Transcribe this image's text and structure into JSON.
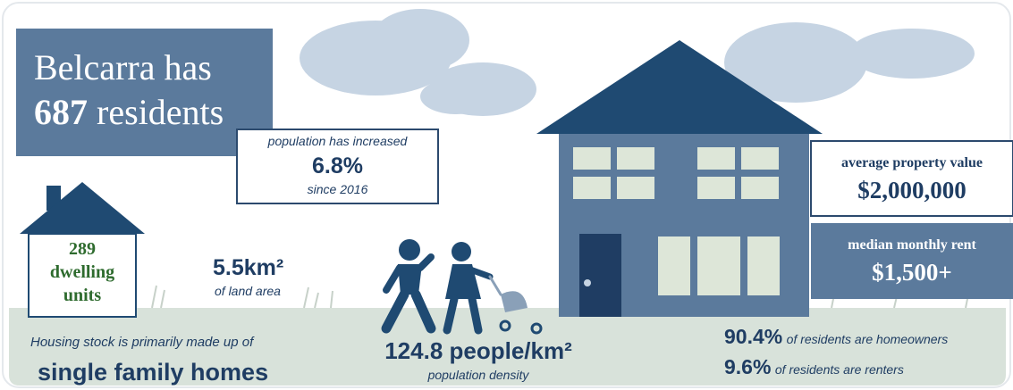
{
  "title": {
    "line1": "Belcarra has",
    "number": "687",
    "word": "residents"
  },
  "population_change": {
    "label": "population has increased",
    "value": "6.8%",
    "since": "since 2016"
  },
  "dwellings": {
    "number": "289",
    "line2": "dwelling",
    "line3": "units"
  },
  "land": {
    "value": "5.5km²",
    "label": "of land area"
  },
  "housing_stock": {
    "intro": "Housing stock is primarily made up of",
    "type": "single family homes"
  },
  "density": {
    "value": "124.8 people/km²",
    "label": "population density"
  },
  "property": {
    "label": "average property value",
    "value": "$2,000,000"
  },
  "rent": {
    "label": "median monthly rent",
    "value": "$1,500+"
  },
  "tenure": [
    {
      "value": "90.4%",
      "label": "of residents are homeowners"
    },
    {
      "value": "9.6%",
      "label": "of residents are renters"
    }
  ]
}
